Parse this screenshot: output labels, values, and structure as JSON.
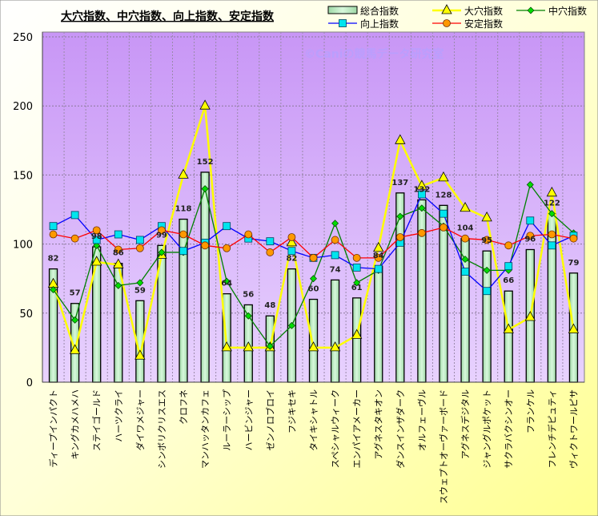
{
  "chart_data": {
    "type": "bar+line",
    "title": "大穴指数、中穴指数、向上指数、安定指数",
    "watermark": "©Caniの競馬データ研究室",
    "ylim": [
      0,
      250
    ],
    "yticks": [
      0,
      50,
      100,
      150,
      200,
      250
    ],
    "grid": true,
    "legend_placement": "top-right",
    "categories": [
      "ディープインパクト",
      "キングカメハメハ",
      "ステイゴールド",
      "ハーツクライ",
      "ダイワメジャー",
      "シンボリクリスエス",
      "クロフネ",
      "マンハッタンカフェ",
      "ルーラーシップ",
      "ハービンジャー",
      "ゼンノロブロイ",
      "フジキセキ",
      "タイキシャトル",
      "スペシャルウィーク",
      "エンパイアメーカー",
      "アグネスタキオン",
      "ダンスインザダーク",
      "オルフェーヴル",
      "スウェプトオーヴァーボード",
      "アグネスデジタル",
      "ジャングルポケット",
      "サクラバクシンオー",
      "フランケル",
      "フレンチデピュティ",
      "ヴィクトワールピサ"
    ],
    "series": [
      {
        "name": "総合指数",
        "kind": "bar",
        "color": "#b8ecc0",
        "values": [
          82,
          57,
          98,
          86,
          59,
          99,
          118,
          152,
          64,
          56,
          48,
          82,
          60,
          74,
          61,
          84,
          137,
          132,
          128,
          104,
          95,
          66,
          96,
          122,
          79
        ]
      },
      {
        "name": "大穴指数",
        "kind": "line",
        "marker": "triangle",
        "color": "#ffff00",
        "values": [
          71,
          23,
          87,
          85,
          19,
          92,
          150,
          200,
          25,
          25,
          25,
          101,
          25,
          25,
          34,
          97,
          175,
          142,
          148,
          126,
          119,
          38,
          47,
          137,
          38
        ]
      },
      {
        "name": "中穴指数",
        "kind": "line",
        "marker": "diamond",
        "color": "#008000",
        "fill": "#00dd00",
        "values": [
          67,
          45,
          99,
          70,
          72,
          94,
          94,
          140,
          73,
          48,
          26,
          41,
          75,
          115,
          72,
          81,
          120,
          126,
          113,
          89,
          81,
          81,
          143,
          122,
          108
        ]
      },
      {
        "name": "向上指数",
        "kind": "line",
        "marker": "square",
        "color": "#0000ff",
        "fill": "#00e5ee",
        "values": [
          113,
          121,
          103,
          107,
          103,
          113,
          95,
          101,
          113,
          104,
          102,
          95,
          90,
          92,
          83,
          82,
          101,
          136,
          122,
          80,
          66,
          84,
          117,
          99,
          106
        ]
      },
      {
        "name": "安定指数",
        "kind": "line",
        "marker": "circle",
        "color": "#ff0000",
        "fill": "#ff9900",
        "values": [
          107,
          104,
          110,
          96,
          97,
          110,
          107,
          99,
          97,
          107,
          94,
          105,
          90,
          103,
          90,
          90,
          105,
          108,
          112,
          104,
          103,
          99,
          106,
          107,
          104
        ]
      }
    ]
  }
}
